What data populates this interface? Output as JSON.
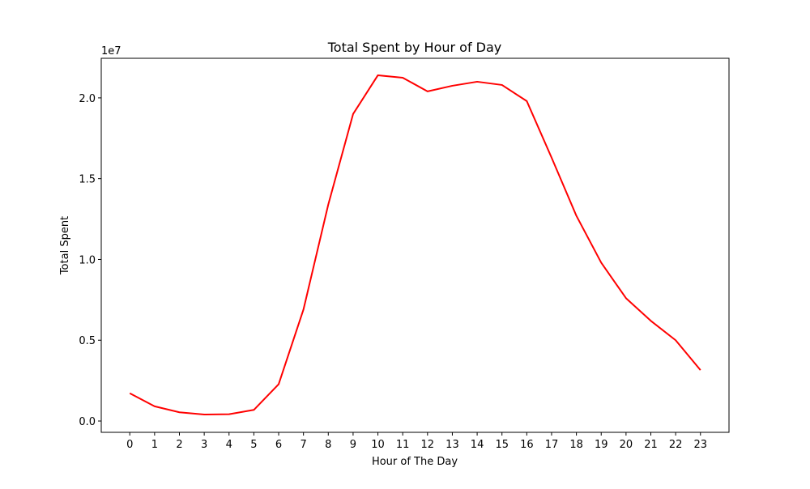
{
  "chart_data": {
    "type": "line",
    "title": "Total Spent by Hour of Day",
    "xlabel": "Hour of The Day",
    "ylabel": "Total Spent",
    "y_offset_label": "1e7",
    "x": [
      0,
      1,
      2,
      3,
      4,
      5,
      6,
      7,
      8,
      9,
      10,
      11,
      12,
      13,
      14,
      15,
      16,
      17,
      18,
      19,
      20,
      21,
      22,
      23
    ],
    "x_tick_labels": [
      "0",
      "1",
      "2",
      "3",
      "4",
      "5",
      "6",
      "7",
      "8",
      "9",
      "10",
      "11",
      "12",
      "13",
      "14",
      "15",
      "16",
      "17",
      "18",
      "19",
      "20",
      "21",
      "22",
      "23"
    ],
    "xlim": [
      -1.15,
      24.15
    ],
    "ylim": [
      -0.07,
      2.245
    ],
    "y_ticks": [
      0.0,
      0.5,
      1.0,
      1.5,
      2.0
    ],
    "y_tick_labels": [
      "0.0",
      "0.5",
      "1.0",
      "1.5",
      "2.0"
    ],
    "y_units_scale": 10000000,
    "series": [
      {
        "color": "#ff0000",
        "values": [
          0.172,
          0.091,
          0.054,
          0.04,
          0.042,
          0.069,
          0.228,
          0.69,
          1.34,
          1.9,
          2.14,
          2.125,
          2.04,
          2.075,
          2.1,
          2.08,
          1.98,
          1.63,
          1.27,
          0.98,
          0.76,
          0.62,
          0.5,
          0.315
        ]
      }
    ],
    "grid": false,
    "legend": "none"
  }
}
